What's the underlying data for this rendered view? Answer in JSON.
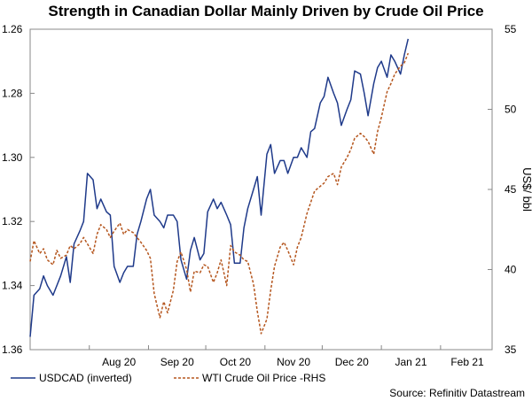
{
  "chart_data": {
    "type": "line",
    "title": "Strength in Canadian Dollar Mainly Driven by Crude Oil Price",
    "source": "Source: Refinitiv Datastream",
    "x_tick_labels": [
      "Aug 20",
      "Sep 20",
      "Oct 20",
      "Nov 20",
      "Dec 20",
      "Jan 21",
      "Feb 21"
    ],
    "x_tick_dates": [
      "2020-08-01",
      "2020-09-01",
      "2020-10-01",
      "2020-11-01",
      "2020-12-01",
      "2021-01-01",
      "2021-02-01"
    ],
    "x_range": [
      "2020-07-01",
      "2021-02-28"
    ],
    "left_axis": {
      "label": "",
      "inverted": true,
      "range": [
        1.26,
        1.36
      ],
      "ticks": [
        "1.26",
        "1.28",
        "1.30",
        "1.32",
        "1.34",
        "1.36"
      ]
    },
    "right_axis": {
      "label": "US$/ bbl",
      "range": [
        35,
        55
      ],
      "ticks": [
        "35",
        "40",
        "45",
        "50",
        "55"
      ]
    },
    "legend": {
      "placement": "bottom"
    },
    "series": [
      {
        "name": "USDCAD (inverted)",
        "axis": "left",
        "color": "#1f3a8a",
        "style": "solid",
        "x": [
          "2020-07-01",
          "2020-07-03",
          "2020-07-06",
          "2020-07-08",
          "2020-07-10",
          "2020-07-13",
          "2020-07-15",
          "2020-07-17",
          "2020-07-20",
          "2020-07-22",
          "2020-07-24",
          "2020-07-27",
          "2020-07-29",
          "2020-07-31",
          "2020-08-03",
          "2020-08-05",
          "2020-08-07",
          "2020-08-10",
          "2020-08-12",
          "2020-08-14",
          "2020-08-17",
          "2020-08-19",
          "2020-08-21",
          "2020-08-24",
          "2020-08-26",
          "2020-08-28",
          "2020-08-31",
          "2020-09-02",
          "2020-09-04",
          "2020-09-07",
          "2020-09-09",
          "2020-09-11",
          "2020-09-14",
          "2020-09-16",
          "2020-09-18",
          "2020-09-21",
          "2020-09-23",
          "2020-09-25",
          "2020-09-28",
          "2020-09-30",
          "2020-10-02",
          "2020-10-05",
          "2020-10-07",
          "2020-10-09",
          "2020-10-12",
          "2020-10-14",
          "2020-10-16",
          "2020-10-19",
          "2020-10-21",
          "2020-10-23",
          "2020-10-26",
          "2020-10-28",
          "2020-10-30",
          "2020-11-02",
          "2020-11-04",
          "2020-11-06",
          "2020-11-09",
          "2020-11-11",
          "2020-11-13",
          "2020-11-16",
          "2020-11-18",
          "2020-11-20",
          "2020-11-23",
          "2020-11-25",
          "2020-11-27",
          "2020-11-30",
          "2020-12-02",
          "2020-12-04",
          "2020-12-07",
          "2020-12-09",
          "2020-12-11",
          "2020-12-14",
          "2020-12-16",
          "2020-12-18",
          "2020-12-21",
          "2020-12-23",
          "2020-12-25",
          "2020-12-28",
          "2020-12-30",
          "2021-01-01",
          "2021-01-04",
          "2021-01-06",
          "2021-01-08",
          "2021-01-11",
          "2021-01-13",
          "2021-01-15"
        ],
        "y": [
          1.356,
          1.343,
          1.341,
          1.337,
          1.34,
          1.343,
          1.34,
          1.337,
          1.331,
          1.339,
          1.327,
          1.323,
          1.32,
          1.305,
          1.307,
          1.316,
          1.313,
          1.317,
          1.318,
          1.334,
          1.339,
          1.336,
          1.334,
          1.334,
          1.324,
          1.32,
          1.313,
          1.31,
          1.318,
          1.32,
          1.322,
          1.318,
          1.318,
          1.32,
          1.332,
          1.338,
          1.329,
          1.325,
          1.332,
          1.33,
          1.317,
          1.313,
          1.316,
          1.314,
          1.318,
          1.321,
          1.333,
          1.333,
          1.322,
          1.316,
          1.31,
          1.306,
          1.318,
          1.299,
          1.296,
          1.305,
          1.301,
          1.301,
          1.305,
          1.3,
          1.3,
          1.297,
          1.3,
          1.292,
          1.291,
          1.283,
          1.281,
          1.275,
          1.28,
          1.283,
          1.29,
          1.285,
          1.282,
          1.273,
          1.274,
          1.28,
          1.287,
          1.277,
          1.272,
          1.27,
          1.275,
          1.268,
          1.27,
          1.274,
          1.268,
          1.263
        ]
      },
      {
        "name": "WTI Crude Oil Price -RHS",
        "axis": "right",
        "color": "#b5561e",
        "style": "dashed",
        "x": [
          "2020-07-01",
          "2020-07-03",
          "2020-07-06",
          "2020-07-08",
          "2020-07-10",
          "2020-07-13",
          "2020-07-15",
          "2020-07-17",
          "2020-07-20",
          "2020-07-22",
          "2020-07-24",
          "2020-07-27",
          "2020-07-29",
          "2020-07-31",
          "2020-08-03",
          "2020-08-05",
          "2020-08-07",
          "2020-08-10",
          "2020-08-12",
          "2020-08-14",
          "2020-08-17",
          "2020-08-19",
          "2020-08-21",
          "2020-08-24",
          "2020-08-26",
          "2020-08-28",
          "2020-08-31",
          "2020-09-02",
          "2020-09-04",
          "2020-09-07",
          "2020-09-09",
          "2020-09-11",
          "2020-09-14",
          "2020-09-16",
          "2020-09-18",
          "2020-09-21",
          "2020-09-23",
          "2020-09-25",
          "2020-09-28",
          "2020-09-30",
          "2020-10-02",
          "2020-10-05",
          "2020-10-07",
          "2020-10-09",
          "2020-10-12",
          "2020-10-14",
          "2020-10-16",
          "2020-10-19",
          "2020-10-21",
          "2020-10-23",
          "2020-10-26",
          "2020-10-28",
          "2020-10-30",
          "2020-11-02",
          "2020-11-04",
          "2020-11-06",
          "2020-11-09",
          "2020-11-11",
          "2020-11-13",
          "2020-11-16",
          "2020-11-18",
          "2020-11-20",
          "2020-11-23",
          "2020-11-25",
          "2020-11-27",
          "2020-11-30",
          "2020-12-02",
          "2020-12-04",
          "2020-12-07",
          "2020-12-09",
          "2020-12-11",
          "2020-12-14",
          "2020-12-16",
          "2020-12-18",
          "2020-12-21",
          "2020-12-23",
          "2020-12-25",
          "2020-12-28",
          "2020-12-30",
          "2021-01-01",
          "2021-01-04",
          "2021-01-06",
          "2021-01-08",
          "2021-01-11",
          "2021-01-13",
          "2021-01-15"
        ],
        "y": [
          40.5,
          41.8,
          41.0,
          41.3,
          40.6,
          40.3,
          41.2,
          40.7,
          40.9,
          41.5,
          41.3,
          41.6,
          42.0,
          41.6,
          41.0,
          42.2,
          42.8,
          42.5,
          42.0,
          42.4,
          42.9,
          42.2,
          42.5,
          42.3,
          42.0,
          41.7,
          41.2,
          40.7,
          38.5,
          37.0,
          38.0,
          37.3,
          38.7,
          40.5,
          41.1,
          40.0,
          38.6,
          39.9,
          39.8,
          40.3,
          40.2,
          39.2,
          39.8,
          40.6,
          39.0,
          41.5,
          41.1,
          40.9,
          40.6,
          40.5,
          39.1,
          37.4,
          36.0,
          36.9,
          38.7,
          40.2,
          41.4,
          41.7,
          41.2,
          40.3,
          41.4,
          42.0,
          43.5,
          44.2,
          44.9,
          45.2,
          45.4,
          45.8,
          46.0,
          45.3,
          46.4,
          47.0,
          47.5,
          48.2,
          48.5,
          48.3,
          48.0,
          47.2,
          48.6,
          49.5,
          51.1,
          51.6,
          52.2,
          52.7,
          52.9,
          53.5
        ]
      }
    ]
  }
}
